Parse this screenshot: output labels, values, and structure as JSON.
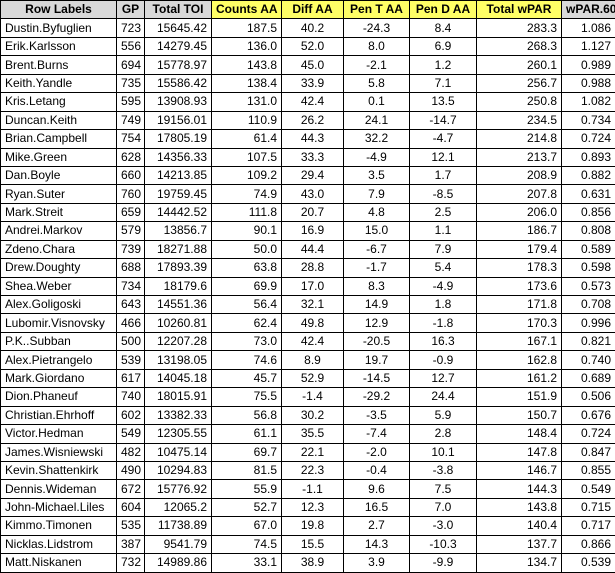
{
  "table": {
    "headers": [
      "Row Labels",
      "GP",
      "Total TOI",
      "Counts AA",
      "Diff AA",
      "Pen T AA",
      "Pen D AA",
      "Total wPAR",
      "wPAR.60"
    ],
    "rows": [
      [
        "Dustin.Byfuglien",
        "723",
        "15645.42",
        "187.5",
        "40.2",
        "-24.3",
        "8.4",
        "283.3",
        "1.086"
      ],
      [
        "Erik.Karlsson",
        "556",
        "14279.45",
        "136.0",
        "52.0",
        "8.0",
        "6.9",
        "268.3",
        "1.127"
      ],
      [
        "Brent.Burns",
        "694",
        "15778.97",
        "143.8",
        "45.0",
        "-2.1",
        "1.2",
        "260.1",
        "0.989"
      ],
      [
        "Keith.Yandle",
        "735",
        "15586.42",
        "138.4",
        "33.9",
        "5.8",
        "7.1",
        "256.7",
        "0.988"
      ],
      [
        "Kris.Letang",
        "595",
        "13908.93",
        "131.0",
        "42.4",
        "0.1",
        "13.5",
        "250.8",
        "1.082"
      ],
      [
        "Duncan.Keith",
        "749",
        "19156.01",
        "110.9",
        "26.2",
        "24.1",
        "-14.7",
        "234.5",
        "0.734"
      ],
      [
        "Brian.Campbell",
        "754",
        "17805.19",
        "61.4",
        "44.3",
        "32.2",
        "-4.7",
        "214.8",
        "0.724"
      ],
      [
        "Mike.Green",
        "628",
        "14356.33",
        "107.5",
        "33.3",
        "-4.9",
        "12.1",
        "213.7",
        "0.893"
      ],
      [
        "Dan.Boyle",
        "660",
        "14213.85",
        "109.2",
        "29.4",
        "3.5",
        "1.7",
        "208.9",
        "0.882"
      ],
      [
        "Ryan.Suter",
        "760",
        "19759.45",
        "74.9",
        "43.0",
        "7.9",
        "-8.5",
        "207.8",
        "0.631"
      ],
      [
        "Mark.Streit",
        "659",
        "14442.52",
        "111.8",
        "20.7",
        "4.8",
        "2.5",
        "206.0",
        "0.856"
      ],
      [
        "Andrei.Markov",
        "579",
        "13856.7",
        "90.1",
        "16.9",
        "15.0",
        "1.1",
        "186.7",
        "0.808"
      ],
      [
        "Zdeno.Chara",
        "739",
        "18271.88",
        "50.0",
        "44.4",
        "-6.7",
        "7.9",
        "179.4",
        "0.589"
      ],
      [
        "Drew.Doughty",
        "688",
        "17893.39",
        "63.8",
        "28.8",
        "-1.7",
        "5.4",
        "178.3",
        "0.598"
      ],
      [
        "Shea.Weber",
        "734",
        "18179.6",
        "69.9",
        "17.0",
        "8.3",
        "-4.9",
        "173.6",
        "0.573"
      ],
      [
        "Alex.Goligoski",
        "643",
        "14551.36",
        "56.4",
        "32.1",
        "14.9",
        "1.8",
        "171.8",
        "0.708"
      ],
      [
        "Lubomir.Visnovsky",
        "466",
        "10260.81",
        "62.4",
        "49.8",
        "12.9",
        "-1.8",
        "170.3",
        "0.996"
      ],
      [
        "P.K..Subban",
        "500",
        "12207.28",
        "73.0",
        "42.4",
        "-20.5",
        "16.3",
        "167.1",
        "0.821"
      ],
      [
        "Alex.Pietrangelo",
        "539",
        "13198.05",
        "74.6",
        "8.9",
        "19.7",
        "-0.9",
        "162.8",
        "0.740"
      ],
      [
        "Mark.Giordano",
        "617",
        "14045.18",
        "45.7",
        "52.9",
        "-14.5",
        "12.7",
        "161.2",
        "0.689"
      ],
      [
        "Dion.Phaneuf",
        "740",
        "18015.91",
        "75.5",
        "-1.4",
        "-29.2",
        "24.4",
        "151.9",
        "0.506"
      ],
      [
        "Christian.Ehrhoff",
        "602",
        "13382.33",
        "56.8",
        "30.2",
        "-3.5",
        "5.9",
        "150.7",
        "0.676"
      ],
      [
        "Victor.Hedman",
        "549",
        "12305.55",
        "61.1",
        "35.5",
        "-7.4",
        "2.8",
        "148.4",
        "0.724"
      ],
      [
        "James.Wisniewski",
        "482",
        "10475.14",
        "69.7",
        "22.1",
        "-2.0",
        "10.1",
        "147.8",
        "0.847"
      ],
      [
        "Kevin.Shattenkirk",
        "490",
        "10294.83",
        "81.5",
        "22.3",
        "-0.4",
        "-3.8",
        "146.7",
        "0.855"
      ],
      [
        "Dennis.Wideman",
        "672",
        "15776.92",
        "55.9",
        "-1.1",
        "9.6",
        "7.5",
        "144.3",
        "0.549"
      ],
      [
        "John-Michael.Liles",
        "604",
        "12065.2",
        "52.7",
        "12.3",
        "16.5",
        "7.0",
        "143.8",
        "0.715"
      ],
      [
        "Kimmo.Timonen",
        "535",
        "11738.89",
        "67.0",
        "19.8",
        "2.7",
        "-3.0",
        "140.4",
        "0.717"
      ],
      [
        "Nicklas.Lidstrom",
        "387",
        "9541.79",
        "74.5",
        "15.5",
        "14.3",
        "-10.3",
        "137.7",
        "0.866"
      ],
      [
        "Matt.Niskanen",
        "732",
        "14989.86",
        "33.1",
        "38.9",
        "3.9",
        "-9.9",
        "134.7",
        "0.539"
      ]
    ]
  }
}
